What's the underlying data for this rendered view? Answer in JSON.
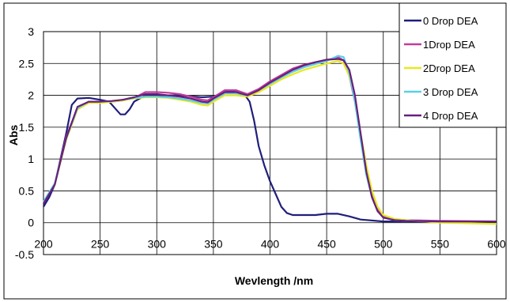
{
  "chart_data": {
    "type": "line",
    "xlabel": "Wevlength /nm",
    "ylabel": "Abs",
    "xlim": [
      200,
      600
    ],
    "ylim": [
      -0.5,
      3
    ],
    "xticks": [
      200,
      250,
      300,
      350,
      400,
      450,
      500,
      550,
      600
    ],
    "yticks": [
      -0.5,
      0,
      0.5,
      1,
      1.5,
      2,
      2.5,
      3
    ],
    "grid": true,
    "legend_position": "top-right",
    "series": [
      {
        "name": "0 Drop DEA",
        "color": "#1f1f7a",
        "x": [
          200,
          205,
          210,
          215,
          220,
          225,
          230,
          240,
          250,
          258,
          264,
          268,
          272,
          276,
          280,
          290,
          300,
          320,
          340,
          350,
          360,
          370,
          378,
          382,
          386,
          390,
          395,
          400,
          405,
          410,
          415,
          420,
          430,
          440,
          450,
          460,
          470,
          480,
          500,
          550,
          600
        ],
        "values": [
          0.25,
          0.4,
          0.6,
          1.0,
          1.4,
          1.85,
          1.95,
          1.96,
          1.93,
          1.9,
          1.78,
          1.7,
          1.7,
          1.78,
          1.9,
          2.0,
          2.0,
          2.0,
          1.97,
          1.98,
          2.05,
          2.08,
          2.0,
          1.9,
          1.6,
          1.2,
          0.9,
          0.65,
          0.45,
          0.25,
          0.15,
          0.12,
          0.12,
          0.12,
          0.14,
          0.14,
          0.1,
          0.05,
          0.02,
          0.02,
          0.02
        ]
      },
      {
        "name": "1Drop DEA",
        "color": "#c03d9c",
        "x": [
          200,
          210,
          220,
          230,
          240,
          250,
          260,
          270,
          280,
          290,
          300,
          310,
          320,
          330,
          340,
          345,
          350,
          360,
          370,
          380,
          390,
          400,
          410,
          420,
          430,
          440,
          450,
          460,
          465,
          470,
          475,
          480,
          485,
          490,
          495,
          500,
          510,
          520,
          550,
          600
        ],
        "values": [
          0.3,
          0.6,
          1.35,
          1.8,
          1.9,
          1.9,
          1.9,
          1.92,
          1.96,
          2.05,
          2.05,
          2.04,
          2.02,
          1.98,
          1.93,
          1.92,
          1.97,
          2.08,
          2.08,
          2.02,
          2.1,
          2.22,
          2.32,
          2.42,
          2.48,
          2.52,
          2.55,
          2.6,
          2.55,
          2.3,
          1.9,
          1.35,
          0.8,
          0.45,
          0.2,
          0.1,
          0.05,
          0.04,
          0.03,
          0.02
        ]
      },
      {
        "name": "2Drop DEA",
        "color": "#e8e820",
        "x": [
          200,
          210,
          220,
          230,
          240,
          250,
          260,
          270,
          280,
          290,
          300,
          310,
          320,
          330,
          340,
          345,
          350,
          360,
          370,
          380,
          390,
          400,
          410,
          420,
          430,
          440,
          450,
          460,
          465,
          470,
          475,
          480,
          485,
          490,
          495,
          500,
          510,
          520,
          550,
          600
        ],
        "values": [
          0.32,
          0.6,
          1.3,
          1.78,
          1.88,
          1.88,
          1.9,
          1.92,
          1.95,
          1.97,
          1.97,
          1.96,
          1.93,
          1.9,
          1.85,
          1.84,
          1.9,
          2.0,
          2.0,
          1.98,
          2.05,
          2.15,
          2.25,
          2.33,
          2.4,
          2.45,
          2.5,
          2.54,
          2.5,
          2.3,
          1.95,
          1.4,
          0.9,
          0.5,
          0.25,
          0.12,
          0.06,
          0.04,
          0.0,
          -0.02
        ]
      },
      {
        "name": "3 Drop DEA",
        "color": "#5ad0e8",
        "x": [
          200,
          210,
          220,
          230,
          240,
          250,
          260,
          270,
          280,
          290,
          300,
          310,
          320,
          330,
          340,
          345,
          350,
          360,
          370,
          380,
          390,
          400,
          410,
          420,
          430,
          440,
          450,
          460,
          465,
          470,
          475,
          480,
          485,
          490,
          495,
          500,
          510,
          520,
          550,
          600
        ],
        "values": [
          0.33,
          0.62,
          1.32,
          1.8,
          1.9,
          1.9,
          1.91,
          1.93,
          1.96,
          1.98,
          1.98,
          1.97,
          1.95,
          1.92,
          1.88,
          1.87,
          1.93,
          2.03,
          2.03,
          2.0,
          2.08,
          2.18,
          2.28,
          2.37,
          2.44,
          2.49,
          2.54,
          2.62,
          2.6,
          2.35,
          1.9,
          1.3,
          0.75,
          0.4,
          0.18,
          0.08,
          0.04,
          0.03,
          0.02,
          0.02
        ]
      },
      {
        "name": "4 Drop DEA",
        "color": "#6a1f7a",
        "x": [
          200,
          210,
          220,
          230,
          240,
          250,
          260,
          270,
          280,
          290,
          300,
          310,
          320,
          330,
          340,
          345,
          350,
          360,
          370,
          380,
          390,
          400,
          410,
          420,
          430,
          440,
          450,
          460,
          465,
          470,
          475,
          480,
          485,
          490,
          495,
          500,
          510,
          520,
          550,
          600
        ],
        "values": [
          0.3,
          0.6,
          1.33,
          1.82,
          1.9,
          1.9,
          1.91,
          1.93,
          1.97,
          2.02,
          2.02,
          2.0,
          1.98,
          1.95,
          1.9,
          1.89,
          1.95,
          2.05,
          2.05,
          2.0,
          2.08,
          2.2,
          2.3,
          2.4,
          2.47,
          2.52,
          2.56,
          2.57,
          2.55,
          2.4,
          2.0,
          1.4,
          0.8,
          0.4,
          0.18,
          0.08,
          0.04,
          0.03,
          0.02,
          0.02
        ]
      }
    ]
  }
}
